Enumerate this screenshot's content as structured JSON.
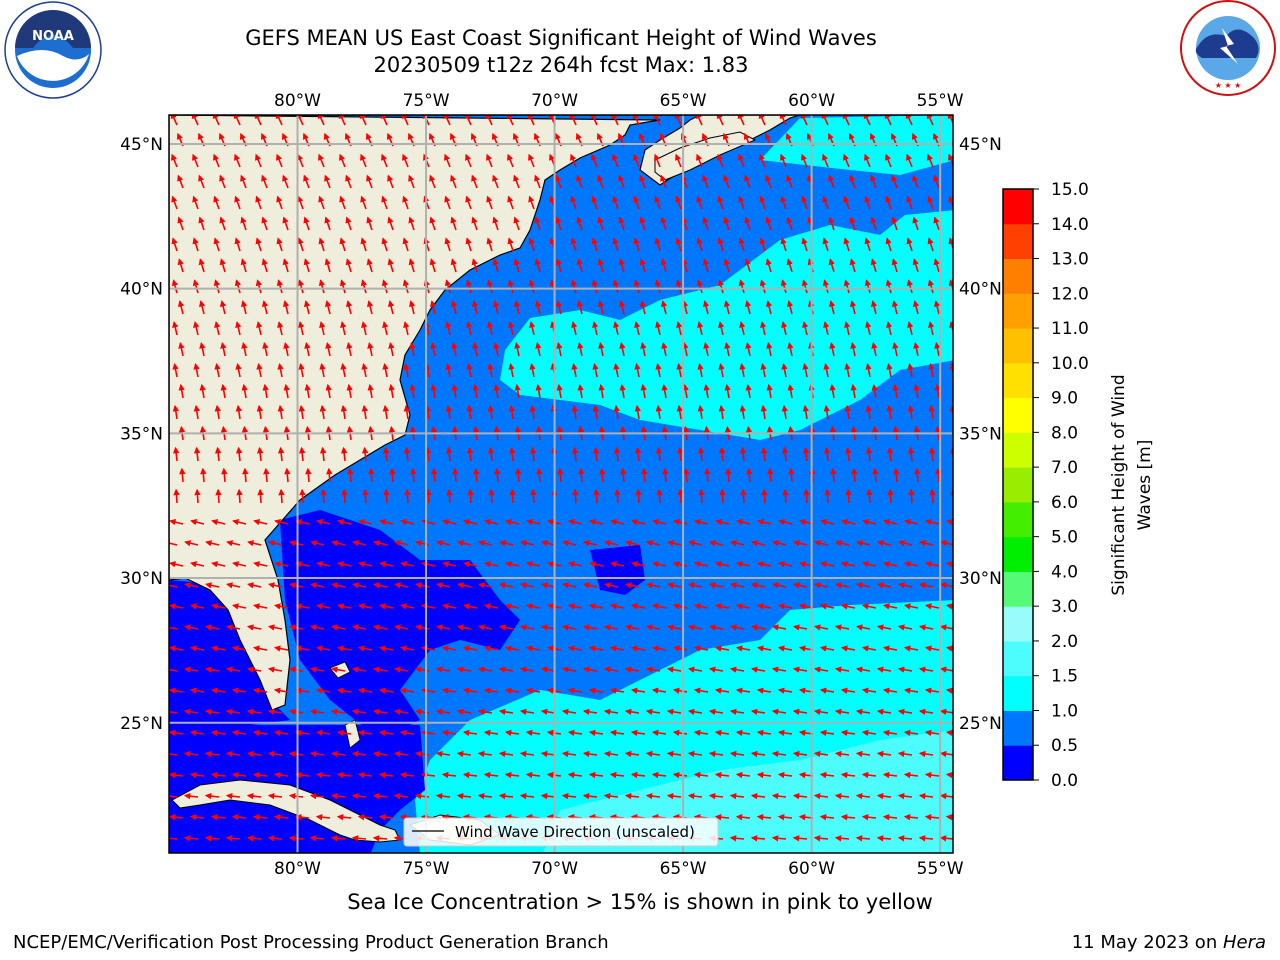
{
  "title": {
    "line1": "GEFS MEAN US East Coast Significant Height of Wind Waves",
    "line2": "20230509 t12z 264h fcst   Max: 1.83"
  },
  "logos": {
    "left": {
      "icon": "noaa-logo",
      "text": "NOAA",
      "ring_text": "NATIONAL OCEANIC AND ATMOSPHERIC ADMINISTRATION · U.S. DEPARTMENT OF COMMERCE"
    },
    "right": {
      "icon": "nws-logo",
      "ring_text": "NATIONAL WEATHER SERVICE"
    }
  },
  "map": {
    "lon_range": [
      -85,
      -54.5
    ],
    "lat_range": [
      20.5,
      46
    ],
    "lon_ticks": [
      -80,
      -75,
      -70,
      -65,
      -60,
      -55
    ],
    "lat_ticks": [
      25,
      30,
      35,
      40,
      45
    ],
    "lon_labels": [
      "80°W",
      "75°W",
      "70°W",
      "65°W",
      "60°W",
      "55°W"
    ],
    "lat_labels": [
      "25°N",
      "30°N",
      "35°N",
      "40°N",
      "45°N"
    ],
    "grid": true,
    "land_color": "#efeddc",
    "arrow_color": "#ff0000",
    "legend": {
      "label": "Wind Wave Direction (unscaled)",
      "placement": "bottom-center"
    }
  },
  "colorbar": {
    "label_line1": "Significant Height of Wind",
    "label_line2": "Waves [m]",
    "ticks": [
      "0.0",
      "0.5",
      "1.0",
      "1.5",
      "2.0",
      "3.0",
      "4.0",
      "5.0",
      "6.0",
      "7.0",
      "8.0",
      "9.0",
      "10.0",
      "11.0",
      "12.0",
      "13.0",
      "14.0",
      "15.0"
    ],
    "colors": [
      "#0000ff",
      "#0077ff",
      "#00ffff",
      "#4dfdfd",
      "#99fcfc",
      "#55fa77",
      "#00ee00",
      "#44ee00",
      "#99ee00",
      "#ccff00",
      "#ffff00",
      "#ffe000",
      "#ffc000",
      "#ffa000",
      "#ff8000",
      "#ff4000",
      "#ff0000"
    ]
  },
  "caption": "Sea Ice Concentration > 15% is shown in pink to yellow",
  "footer": {
    "left": "NCEP/EMC/Verification Post Processing Product Generation Branch",
    "right_prefix": "11 May 2023 on ",
    "right_host": "Hera"
  }
}
